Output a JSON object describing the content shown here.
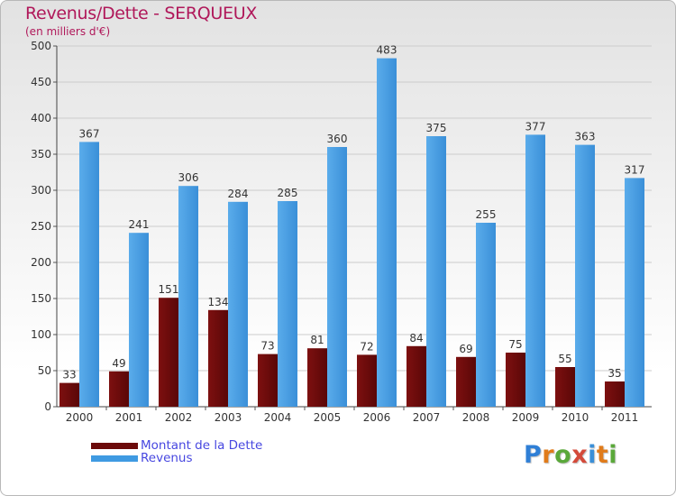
{
  "title": "Revenus/Dette - SERQUEUX",
  "subtitle": "(en milliers d'€)",
  "legend": {
    "debt_label": "Montant de la Dette",
    "revenue_label": "Revenus"
  },
  "logo": {
    "text": "Proxiti"
  },
  "colors": {
    "debt": "#6b0a0a",
    "revenue": "#3f9ae2",
    "title": "#b0185a",
    "legend_text": "#4747e0"
  },
  "chart_data": {
    "type": "bar",
    "categories": [
      "2000",
      "2001",
      "2002",
      "2003",
      "2004",
      "2005",
      "2006",
      "2007",
      "2008",
      "2009",
      "2010",
      "2011"
    ],
    "series": [
      {
        "name": "Montant de la Dette",
        "values": [
          33,
          49,
          151,
          134,
          73,
          81,
          72,
          84,
          69,
          75,
          55,
          35
        ]
      },
      {
        "name": "Revenus",
        "values": [
          367,
          241,
          306,
          284,
          285,
          360,
          483,
          375,
          255,
          377,
          363,
          317
        ]
      }
    ],
    "ylim": [
      0,
      500
    ],
    "yticks": [
      0,
      50,
      100,
      150,
      200,
      250,
      300,
      350,
      400,
      450,
      500
    ],
    "grid": true,
    "legend_position": "bottom-left"
  }
}
